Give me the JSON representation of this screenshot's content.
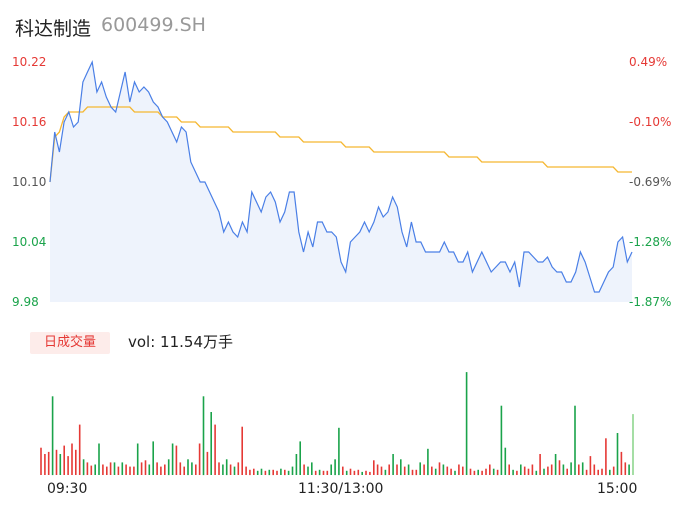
{
  "header": {
    "name": "科达制造",
    "code": "600499.SH"
  },
  "price_axis": [
    "10.22",
    "10.16",
    "10.10",
    "10.04",
    "9.98"
  ],
  "pct_axis": [
    "0.49%",
    "-0.10%",
    "-0.69%",
    "-1.28%",
    "-1.87%"
  ],
  "colors": {
    "up": "#e53935",
    "flat": "#555555",
    "down": "#1aa34a",
    "price_line": "#4a7fe6",
    "avg_line": "#f5b731",
    "area": "#eef3fc"
  },
  "volume": {
    "badge": "日成交量",
    "text": "vol: 11.54万手"
  },
  "time_axis": [
    "09:30",
    "11:30/13:00",
    "15:00"
  ],
  "chart_data": {
    "type": "line",
    "ylim": [
      9.98,
      10.22
    ],
    "prev_close": 10.17,
    "series": [
      {
        "name": "price",
        "values": [
          10.1,
          10.15,
          10.13,
          10.16,
          10.17,
          10.155,
          10.16,
          10.2,
          10.21,
          10.22,
          10.19,
          10.2,
          10.185,
          10.175,
          10.17,
          10.19,
          10.21,
          10.18,
          10.2,
          10.19,
          10.195,
          10.19,
          10.18,
          10.175,
          10.165,
          10.16,
          10.15,
          10.14,
          10.155,
          10.15,
          10.12,
          10.11,
          10.1,
          10.1,
          10.09,
          10.08,
          10.07,
          10.05,
          10.06,
          10.05,
          10.045,
          10.06,
          10.05,
          10.09,
          10.08,
          10.07,
          10.085,
          10.09,
          10.08,
          10.06,
          10.07,
          10.09,
          10.09,
          10.05,
          10.03,
          10.05,
          10.035,
          10.06,
          10.06,
          10.05,
          10.05,
          10.045,
          10.02,
          10.01,
          10.04,
          10.045,
          10.05,
          10.06,
          10.05,
          10.06,
          10.075,
          10.065,
          10.07,
          10.085,
          10.075,
          10.05,
          10.035,
          10.06,
          10.04,
          10.04,
          10.03,
          10.03,
          10.03,
          10.03,
          10.04,
          10.03,
          10.03,
          10.02,
          10.02,
          10.03,
          10.01,
          10.02,
          10.03,
          10.02,
          10.01,
          10.015,
          10.02,
          10.02,
          10.01,
          10.02,
          9.995,
          10.03,
          10.03,
          10.025,
          10.02,
          10.02,
          10.025,
          10.015,
          10.01,
          10.01,
          10.0,
          10.0,
          10.01,
          10.03,
          10.02,
          10.005,
          9.99,
          9.99,
          10.0,
          10.01,
          10.015,
          10.04,
          10.045,
          10.02,
          10.03
        ]
      },
      {
        "name": "avg",
        "values": [
          10.1,
          10.145,
          10.15,
          10.165,
          10.17,
          10.17,
          10.17,
          10.17,
          10.175,
          10.175,
          10.175,
          10.175,
          10.175,
          10.175,
          10.175,
          10.175,
          10.175,
          10.175,
          10.17,
          10.17,
          10.17,
          10.17,
          10.17,
          10.17,
          10.165,
          10.165,
          10.165,
          10.165,
          10.16,
          10.16,
          10.16,
          10.16,
          10.155,
          10.155,
          10.155,
          10.155,
          10.155,
          10.155,
          10.155,
          10.15,
          10.15,
          10.15,
          10.15,
          10.15,
          10.15,
          10.15,
          10.15,
          10.15,
          10.15,
          10.145,
          10.145,
          10.145,
          10.145,
          10.145,
          10.14,
          10.14,
          10.14,
          10.14,
          10.14,
          10.14,
          10.14,
          10.14,
          10.14,
          10.135,
          10.135,
          10.135,
          10.135,
          10.135,
          10.135,
          10.13,
          10.13,
          10.13,
          10.13,
          10.13,
          10.13,
          10.13,
          10.13,
          10.13,
          10.13,
          10.13,
          10.13,
          10.13,
          10.13,
          10.13,
          10.13,
          10.125,
          10.125,
          10.125,
          10.125,
          10.125,
          10.125,
          10.125,
          10.12,
          10.12,
          10.12,
          10.12,
          10.12,
          10.12,
          10.12,
          10.12,
          10.12,
          10.12,
          10.12,
          10.12,
          10.12,
          10.12,
          10.115,
          10.115,
          10.115,
          10.115,
          10.115,
          10.115,
          10.115,
          10.115,
          10.115,
          10.115,
          10.115,
          10.115,
          10.115,
          10.115,
          10.115,
          10.11,
          10.11,
          10.11,
          10.11
        ]
      }
    ],
    "volumes": [
      {
        "v": 26,
        "d": "up"
      },
      {
        "v": 20,
        "d": "up"
      },
      {
        "v": 22,
        "d": "up"
      },
      {
        "v": 75,
        "d": "down"
      },
      {
        "v": 24,
        "d": "up"
      },
      {
        "v": 20,
        "d": "down"
      },
      {
        "v": 28,
        "d": "up"
      },
      {
        "v": 18,
        "d": "up"
      },
      {
        "v": 30,
        "d": "up"
      },
      {
        "v": 24,
        "d": "up"
      },
      {
        "v": 48,
        "d": "up"
      },
      {
        "v": 15,
        "d": "down"
      },
      {
        "v": 12,
        "d": "up"
      },
      {
        "v": 9,
        "d": "up"
      },
      {
        "v": 10,
        "d": "down"
      },
      {
        "v": 30,
        "d": "down"
      },
      {
        "v": 10,
        "d": "up"
      },
      {
        "v": 8,
        "d": "up"
      },
      {
        "v": 12,
        "d": "up"
      },
      {
        "v": 12,
        "d": "down"
      },
      {
        "v": 8,
        "d": "up"
      },
      {
        "v": 12,
        "d": "down"
      },
      {
        "v": 10,
        "d": "up"
      },
      {
        "v": 8,
        "d": "up"
      },
      {
        "v": 8,
        "d": "up"
      },
      {
        "v": 30,
        "d": "down"
      },
      {
        "v": 12,
        "d": "up"
      },
      {
        "v": 14,
        "d": "up"
      },
      {
        "v": 10,
        "d": "down"
      },
      {
        "v": 32,
        "d": "down"
      },
      {
        "v": 12,
        "d": "up"
      },
      {
        "v": 8,
        "d": "up"
      },
      {
        "v": 10,
        "d": "up"
      },
      {
        "v": 15,
        "d": "down"
      },
      {
        "v": 30,
        "d": "down"
      },
      {
        "v": 28,
        "d": "up"
      },
      {
        "v": 12,
        "d": "up"
      },
      {
        "v": 8,
        "d": "up"
      },
      {
        "v": 15,
        "d": "down"
      },
      {
        "v": 12,
        "d": "down"
      },
      {
        "v": 10,
        "d": "up"
      },
      {
        "v": 30,
        "d": "up"
      },
      {
        "v": 75,
        "d": "down"
      },
      {
        "v": 22,
        "d": "up"
      },
      {
        "v": 60,
        "d": "down"
      },
      {
        "v": 48,
        "d": "up"
      },
      {
        "v": 12,
        "d": "up"
      },
      {
        "v": 10,
        "d": "down"
      },
      {
        "v": 15,
        "d": "down"
      },
      {
        "v": 10,
        "d": "up"
      },
      {
        "v": 8,
        "d": "down"
      },
      {
        "v": 12,
        "d": "up"
      },
      {
        "v": 46,
        "d": "up"
      },
      {
        "v": 8,
        "d": "up"
      },
      {
        "v": 5,
        "d": "up"
      },
      {
        "v": 6,
        "d": "up"
      },
      {
        "v": 4,
        "d": "down"
      },
      {
        "v": 6,
        "d": "down"
      },
      {
        "v": 4,
        "d": "up"
      },
      {
        "v": 5,
        "d": "down"
      },
      {
        "v": 5,
        "d": "up"
      },
      {
        "v": 4,
        "d": "up"
      },
      {
        "v": 6,
        "d": "down"
      },
      {
        "v": 5,
        "d": "up"
      },
      {
        "v": 4,
        "d": "down"
      },
      {
        "v": 8,
        "d": "down"
      },
      {
        "v": 20,
        "d": "down"
      },
      {
        "v": 32,
        "d": "down"
      },
      {
        "v": 10,
        "d": "up"
      },
      {
        "v": 8,
        "d": "down"
      },
      {
        "v": 12,
        "d": "down"
      },
      {
        "v": 4,
        "d": "up"
      },
      {
        "v": 5,
        "d": "down"
      },
      {
        "v": 4,
        "d": "up"
      },
      {
        "v": 4,
        "d": "up"
      },
      {
        "v": 10,
        "d": "down"
      },
      {
        "v": 15,
        "d": "down"
      },
      {
        "v": 45,
        "d": "down"
      },
      {
        "v": 8,
        "d": "up"
      },
      {
        "v": 4,
        "d": "down"
      },
      {
        "v": 6,
        "d": "up"
      },
      {
        "v": 4,
        "d": "up"
      },
      {
        "v": 5,
        "d": "up"
      },
      {
        "v": 3,
        "d": "down"
      },
      {
        "v": 4,
        "d": "up"
      },
      {
        "v": 3,
        "d": "up"
      },
      {
        "v": 14,
        "d": "up"
      },
      {
        "v": 10,
        "d": "up"
      },
      {
        "v": 8,
        "d": "up"
      },
      {
        "v": 5,
        "d": "down"
      },
      {
        "v": 10,
        "d": "up"
      },
      {
        "v": 20,
        "d": "down"
      },
      {
        "v": 10,
        "d": "up"
      },
      {
        "v": 15,
        "d": "down"
      },
      {
        "v": 8,
        "d": "up"
      },
      {
        "v": 10,
        "d": "down"
      },
      {
        "v": 5,
        "d": "up"
      },
      {
        "v": 5,
        "d": "up"
      },
      {
        "v": 12,
        "d": "down"
      },
      {
        "v": 10,
        "d": "up"
      },
      {
        "v": 25,
        "d": "down"
      },
      {
        "v": 8,
        "d": "up"
      },
      {
        "v": 6,
        "d": "down"
      },
      {
        "v": 12,
        "d": "up"
      },
      {
        "v": 10,
        "d": "down"
      },
      {
        "v": 8,
        "d": "up"
      },
      {
        "v": 6,
        "d": "up"
      },
      {
        "v": 4,
        "d": "down"
      },
      {
        "v": 10,
        "d": "up"
      },
      {
        "v": 8,
        "d": "up"
      },
      {
        "v": 98,
        "d": "down"
      },
      {
        "v": 6,
        "d": "up"
      },
      {
        "v": 4,
        "d": "up"
      },
      {
        "v": 5,
        "d": "down"
      },
      {
        "v": 4,
        "d": "up"
      },
      {
        "v": 6,
        "d": "up"
      },
      {
        "v": 10,
        "d": "up"
      },
      {
        "v": 6,
        "d": "down"
      },
      {
        "v": 5,
        "d": "up"
      },
      {
        "v": 66,
        "d": "down"
      },
      {
        "v": 26,
        "d": "down"
      },
      {
        "v": 10,
        "d": "up"
      },
      {
        "v": 5,
        "d": "down"
      },
      {
        "v": 4,
        "d": "up"
      },
      {
        "v": 10,
        "d": "down"
      },
      {
        "v": 8,
        "d": "up"
      },
      {
        "v": 6,
        "d": "up"
      },
      {
        "v": 10,
        "d": "up"
      },
      {
        "v": 4,
        "d": "down"
      },
      {
        "v": 20,
        "d": "up"
      },
      {
        "v": 6,
        "d": "down"
      },
      {
        "v": 8,
        "d": "up"
      },
      {
        "v": 10,
        "d": "up"
      },
      {
        "v": 20,
        "d": "down"
      },
      {
        "v": 14,
        "d": "up"
      },
      {
        "v": 10,
        "d": "down"
      },
      {
        "v": 6,
        "d": "up"
      },
      {
        "v": 12,
        "d": "down"
      },
      {
        "v": 66,
        "d": "down"
      },
      {
        "v": 10,
        "d": "up"
      },
      {
        "v": 12,
        "d": "down"
      },
      {
        "v": 5,
        "d": "up"
      },
      {
        "v": 18,
        "d": "up"
      },
      {
        "v": 10,
        "d": "up"
      },
      {
        "v": 5,
        "d": "up"
      },
      {
        "v": 6,
        "d": "up"
      },
      {
        "v": 35,
        "d": "up"
      },
      {
        "v": 5,
        "d": "down"
      },
      {
        "v": 8,
        "d": "up"
      },
      {
        "v": 40,
        "d": "down"
      },
      {
        "v": 22,
        "d": "up"
      },
      {
        "v": 12,
        "d": "up"
      },
      {
        "v": 10,
        "d": "down"
      },
      {
        "v": 58,
        "d": "flat"
      }
    ],
    "vmax": 100
  }
}
